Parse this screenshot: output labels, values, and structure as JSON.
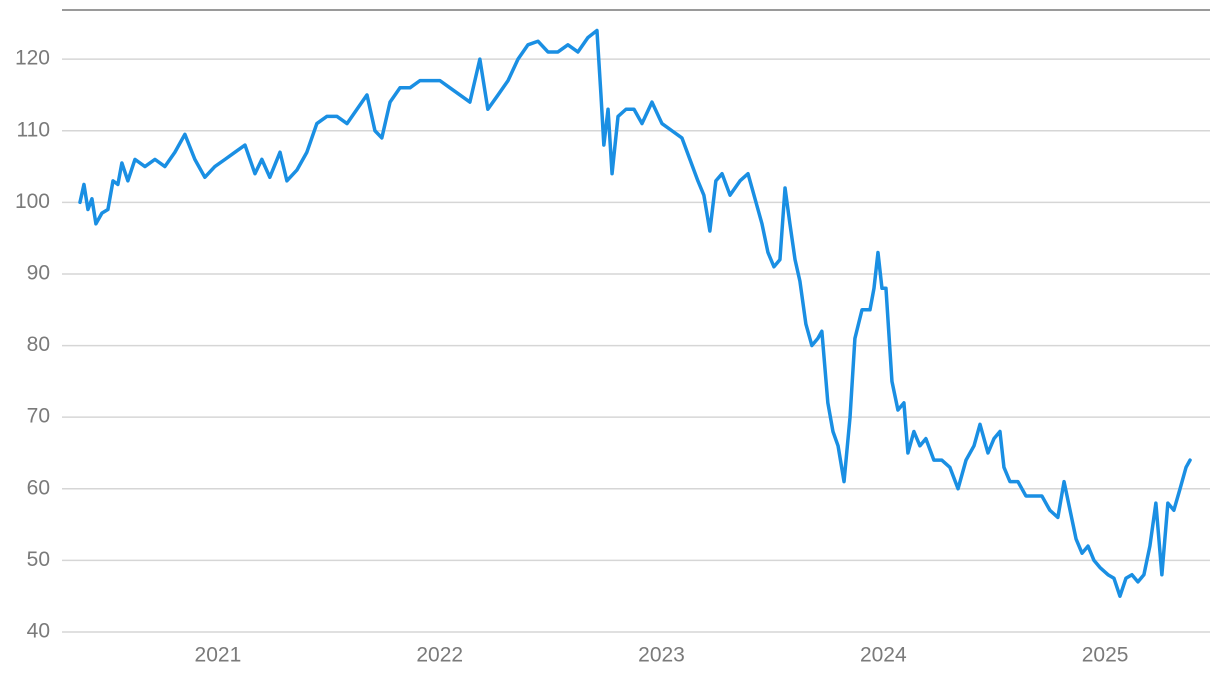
{
  "chart_data": {
    "type": "line",
    "x": [
      2020.378,
      2020.396,
      2020.414,
      2020.432,
      2020.45,
      2020.477,
      2020.504,
      2020.527,
      2020.549,
      2020.567,
      2020.594,
      2020.626,
      2020.671,
      2020.716,
      2020.761,
      2020.806,
      2020.851,
      2020.896,
      2020.941,
      2020.986,
      2021.032,
      2021.077,
      2021.122,
      2021.167,
      2021.198,
      2021.234,
      2021.28,
      2021.311,
      2021.356,
      2021.401,
      2021.446,
      2021.491,
      2021.537,
      2021.582,
      2021.627,
      2021.672,
      2021.708,
      2021.739,
      2021.776,
      2021.821,
      2021.866,
      2021.911,
      2021.956,
      2022.001,
      2022.046,
      2022.091,
      2022.136,
      2022.181,
      2022.217,
      2022.263,
      2022.308,
      2022.353,
      2022.398,
      2022.443,
      2022.488,
      2022.533,
      2022.578,
      2022.623,
      2022.668,
      2022.709,
      2022.727,
      2022.74,
      2022.759,
      2022.777,
      2022.804,
      2022.84,
      2022.876,
      2022.912,
      2022.957,
      2023.002,
      2023.047,
      2023.092,
      2023.128,
      2023.164,
      2023.191,
      2023.218,
      2023.245,
      2023.273,
      2023.309,
      2023.354,
      2023.39,
      2023.426,
      2023.453,
      2023.48,
      2023.507,
      2023.534,
      2023.557,
      2023.579,
      2023.602,
      2023.624,
      2023.651,
      2023.678,
      2023.705,
      2023.723,
      2023.75,
      2023.773,
      2023.796,
      2023.823,
      2023.85,
      2023.872,
      2023.904,
      2023.94,
      2023.958,
      2023.976,
      2023.994,
      2024.012,
      2024.039,
      2024.066,
      2024.093,
      2024.111,
      2024.138,
      2024.165,
      2024.192,
      2024.228,
      2024.264,
      2024.3,
      2024.337,
      2024.373,
      2024.409,
      2024.436,
      2024.472,
      2024.499,
      2024.526,
      2024.544,
      2024.571,
      2024.607,
      2024.643,
      2024.679,
      2024.715,
      2024.751,
      2024.787,
      2024.815,
      2024.842,
      2024.869,
      2024.896,
      2024.923,
      2024.95,
      2024.977,
      2025.013,
      2025.04,
      2025.067,
      2025.094,
      2025.121,
      2025.148,
      2025.175,
      2025.202,
      2025.229,
      2025.256,
      2025.283,
      2025.31,
      2025.338,
      2025.365,
      2025.383
    ],
    "series": [
      {
        "color": "#1a8fe3",
        "values": [
          100,
          102.5,
          99,
          100.5,
          97,
          98.5,
          99,
          103,
          102.5,
          105.5,
          103,
          106,
          105,
          106,
          105,
          107,
          109.5,
          106,
          103.5,
          105,
          106,
          107,
          108,
          104,
          106,
          103.5,
          107,
          103,
          104.5,
          107,
          111,
          112,
          112,
          111,
          113,
          115,
          110,
          109,
          114,
          116,
          116,
          117,
          117,
          117,
          116,
          115,
          114,
          120,
          113,
          115,
          117,
          120,
          122,
          122.5,
          121,
          121,
          122,
          121,
          123,
          124,
          115,
          108,
          113,
          104,
          112,
          113,
          113,
          111,
          114,
          111,
          110,
          109,
          106,
          103,
          101,
          96,
          103,
          104,
          101,
          103,
          104,
          100,
          97,
          93,
          91,
          92,
          102,
          97,
          92,
          89,
          83,
          80,
          81,
          82,
          72,
          68,
          66,
          61,
          70,
          81,
          85,
          85,
          88,
          93,
          88,
          88,
          75,
          71,
          72,
          65,
          68,
          66,
          67,
          64,
          64,
          63,
          60,
          64,
          66,
          69,
          65,
          67,
          68,
          63,
          61,
          61,
          59,
          59,
          59,
          57,
          56,
          61,
          57,
          53,
          51,
          52,
          50,
          49,
          48,
          47.5,
          45,
          47.5,
          48,
          47,
          48,
          52,
          58,
          48,
          58,
          57,
          60,
          63,
          64
        ]
      }
    ],
    "xlim": [
      2020.297,
      2025.473
    ],
    "xticks": [
      2021,
      2022,
      2023,
      2024,
      2025
    ],
    "ylim": [
      40,
      127
    ],
    "yticks": [
      40,
      50,
      60,
      70,
      80,
      90,
      100,
      110,
      120
    ],
    "grid": true
  }
}
